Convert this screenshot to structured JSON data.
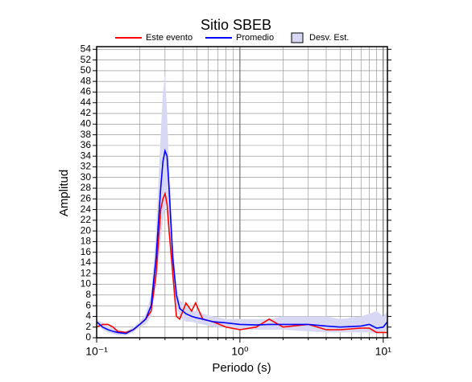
{
  "chart_data": {
    "type": "line",
    "title": "Sitio SBEB",
    "xlabel": "Periodo (s)",
    "ylabel": "Amplitud",
    "xscale": "log",
    "grid": true,
    "xlim": [
      0.1,
      10.7
    ],
    "ylim": [
      0,
      54.5
    ],
    "xticks": [
      {
        "value": 0.1,
        "label": "10⁻¹"
      },
      {
        "value": 1,
        "label": "10⁰"
      },
      {
        "value": 10,
        "label": "10¹"
      }
    ],
    "xminorticks": [
      0.2,
      0.3,
      0.4,
      0.5,
      0.6,
      0.7,
      0.8,
      0.9,
      2,
      3,
      4,
      5,
      6,
      7,
      8,
      9
    ],
    "yticks": [
      0,
      2,
      4,
      6,
      8,
      10,
      12,
      14,
      16,
      18,
      20,
      22,
      24,
      26,
      28,
      30,
      32,
      34,
      36,
      38,
      40,
      42,
      44,
      46,
      48,
      50,
      52,
      54
    ],
    "x": [
      0.1,
      0.11,
      0.12,
      0.13,
      0.14,
      0.16,
      0.18,
      0.2,
      0.22,
      0.24,
      0.26,
      0.28,
      0.29,
      0.3,
      0.31,
      0.32,
      0.34,
      0.36,
      0.38,
      0.42,
      0.46,
      0.49,
      0.55,
      0.65,
      0.8,
      1,
      1.3,
      1.6,
      2,
      3,
      4,
      5,
      7,
      8,
      9,
      10,
      10.7
    ],
    "series": [
      {
        "name": "Este evento",
        "color": "#ff0000",
        "values": [
          2,
          2.5,
          2.5,
          2,
          1.2,
          1,
          1.5,
          2.5,
          3.5,
          5,
          12,
          24,
          26,
          27,
          25,
          20,
          12,
          4,
          3.5,
          6.5,
          5,
          6.5,
          3.5,
          3,
          2,
          1.5,
          2,
          3.5,
          2,
          2.5,
          1.5,
          1.5,
          1.8,
          1.8,
          1,
          1,
          1
        ]
      },
      {
        "name": "Promedio",
        "color": "#0000ff",
        "values": [
          3,
          2,
          1.5,
          1.2,
          1,
          0.8,
          1.5,
          2.5,
          3.5,
          6,
          15,
          28,
          33,
          35,
          34,
          28,
          15,
          8,
          5.5,
          4.5,
          4,
          3.8,
          3.5,
          3,
          2.8,
          2.5,
          2.4,
          2.5,
          2.5,
          2.5,
          2.2,
          2,
          2.2,
          2.5,
          1.8,
          2,
          3
        ]
      },
      {
        "name": "Desv. Est.",
        "color": "#d8d8f4",
        "band": true,
        "upper": [
          3.5,
          2.8,
          2.2,
          1.8,
          1.5,
          1.2,
          2,
          3,
          4.5,
          8,
          20,
          38,
          46,
          49,
          42,
          32,
          18,
          10,
          7,
          6,
          5,
          5,
          4.5,
          4,
          3.5,
          3.5,
          3.5,
          3.5,
          4,
          4,
          4,
          3.5,
          4,
          4.5,
          5,
          4,
          5
        ],
        "lower": [
          2.5,
          1.5,
          1,
          0.7,
          0.5,
          0.4,
          1,
          2,
          2.5,
          4,
          10,
          18,
          22,
          24,
          26,
          22,
          11,
          6,
          4,
          3,
          3,
          2.8,
          2.5,
          2,
          2,
          1.5,
          1.5,
          1.5,
          1.5,
          1.2,
          1,
          1,
          1,
          1,
          0.8,
          1,
          1.5
        ]
      }
    ]
  }
}
